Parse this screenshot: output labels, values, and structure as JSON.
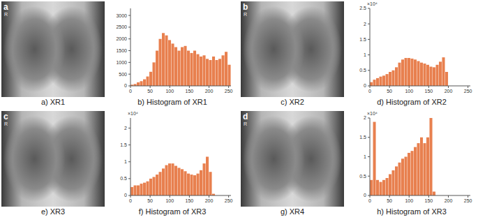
{
  "images": [
    {
      "letter": "a",
      "marker": "R",
      "caption": "a) XR1"
    },
    {
      "letter": "b",
      "marker": "R",
      "caption": "c) XR2"
    },
    {
      "letter": "c",
      "marker": "R",
      "caption": "e) XR3"
    },
    {
      "letter": "d",
      "marker": "R",
      "caption": "g) XR4"
    }
  ],
  "chart_data": [
    {
      "type": "histogram",
      "title": "b) Histogram of XR1",
      "bins": [
        0,
        8,
        16,
        24,
        32,
        40,
        48,
        56,
        64,
        72,
        80,
        88,
        96,
        104,
        112,
        120,
        128,
        136,
        144,
        152,
        160,
        168,
        176,
        184,
        192,
        200,
        208,
        216,
        224,
        232,
        240,
        248,
        256
      ],
      "values": [
        50,
        80,
        150,
        200,
        280,
        400,
        600,
        1000,
        1500,
        2000,
        2250,
        2150,
        1950,
        1800,
        1650,
        1500,
        1650,
        1700,
        1500,
        1400,
        1500,
        1350,
        1250,
        1300,
        1150,
        1100,
        1250,
        1100,
        1150,
        1300,
        1450,
        900
      ],
      "color": "#e8804f",
      "xlim": [
        0,
        256
      ],
      "xticks": [
        0,
        50,
        100,
        150,
        200,
        250
      ],
      "ylim": [
        0,
        3300
      ],
      "yticks": [
        0,
        500,
        1000,
        1500,
        2000,
        2500,
        3000
      ],
      "grid": false
    },
    {
      "type": "histogram",
      "title": "d) Histogram of XR2",
      "annotation": "×10⁴",
      "bins": [
        0,
        8,
        16,
        24,
        32,
        40,
        48,
        56,
        64,
        72,
        80,
        88,
        96,
        104,
        112,
        120,
        128,
        136,
        144,
        152,
        160,
        168,
        176,
        184,
        192,
        200,
        208,
        216,
        224,
        232,
        240,
        248,
        256
      ],
      "values": [
        0.12,
        0.2,
        0.25,
        0.3,
        0.33,
        0.38,
        0.45,
        0.5,
        0.6,
        0.75,
        0.85,
        0.9,
        0.9,
        0.88,
        0.85,
        0.8,
        0.75,
        0.72,
        0.68,
        0.62,
        0.6,
        0.68,
        0.78,
        0.92,
        0.45,
        0,
        0,
        0,
        0,
        0,
        0,
        0
      ],
      "color": "#e8804f",
      "xlim": [
        0,
        256
      ],
      "xticks": [
        0,
        50,
        100,
        150,
        200,
        250
      ],
      "ylim": [
        0,
        2.5
      ],
      "yticks": [
        0,
        0.5,
        1,
        1.5,
        2,
        2.5
      ],
      "grid": false
    },
    {
      "type": "histogram",
      "title": "f) Histogram of XR3",
      "annotation": "×10⁴",
      "bins": [
        0,
        8,
        16,
        24,
        32,
        40,
        48,
        56,
        64,
        72,
        80,
        88,
        96,
        104,
        112,
        120,
        128,
        136,
        144,
        152,
        160,
        168,
        176,
        184,
        192,
        200,
        208,
        216,
        224,
        232,
        240,
        248,
        256
      ],
      "values": [
        0.25,
        0.3,
        0.3,
        0.35,
        0.38,
        0.42,
        0.5,
        0.55,
        0.62,
        0.7,
        0.8,
        0.9,
        0.95,
        0.95,
        0.88,
        0.82,
        0.78,
        0.72,
        0.65,
        0.62,
        0.6,
        0.65,
        0.75,
        0.95,
        1.15,
        0.7,
        0.05,
        0,
        0,
        0,
        0,
        0
      ],
      "color": "#e8804f",
      "xlim": [
        0,
        256
      ],
      "xticks": [
        0,
        50,
        100,
        150,
        200,
        250
      ],
      "ylim": [
        0,
        2.3
      ],
      "yticks": [
        0,
        0.5,
        1,
        1.5,
        2
      ],
      "grid": false
    },
    {
      "type": "histogram",
      "title": "h) Histogram of XR3",
      "annotation": "×10⁴",
      "bins": [
        0,
        8,
        16,
        24,
        32,
        40,
        48,
        56,
        64,
        72,
        80,
        88,
        96,
        104,
        112,
        120,
        128,
        136,
        144,
        152,
        160,
        168,
        176,
        184,
        192,
        200,
        208,
        216,
        224,
        232,
        240,
        248,
        256
      ],
      "values": [
        0.4,
        1.9,
        0.4,
        0.35,
        0.4,
        0.45,
        0.55,
        0.65,
        0.75,
        0.85,
        0.95,
        1.0,
        1.1,
        1.15,
        1.25,
        1.35,
        1.5,
        1.35,
        1.5,
        2.0,
        0.1,
        0,
        0,
        0,
        0,
        0,
        0,
        0,
        0,
        0,
        0,
        0
      ],
      "color": "#e8804f",
      "xlim": [
        0,
        256
      ],
      "xticks": [
        0,
        50,
        100,
        150,
        200,
        250
      ],
      "ylim": [
        0,
        2.0
      ],
      "yticks": [
        0,
        0.5,
        1,
        1.5,
        2
      ],
      "grid": false
    }
  ]
}
